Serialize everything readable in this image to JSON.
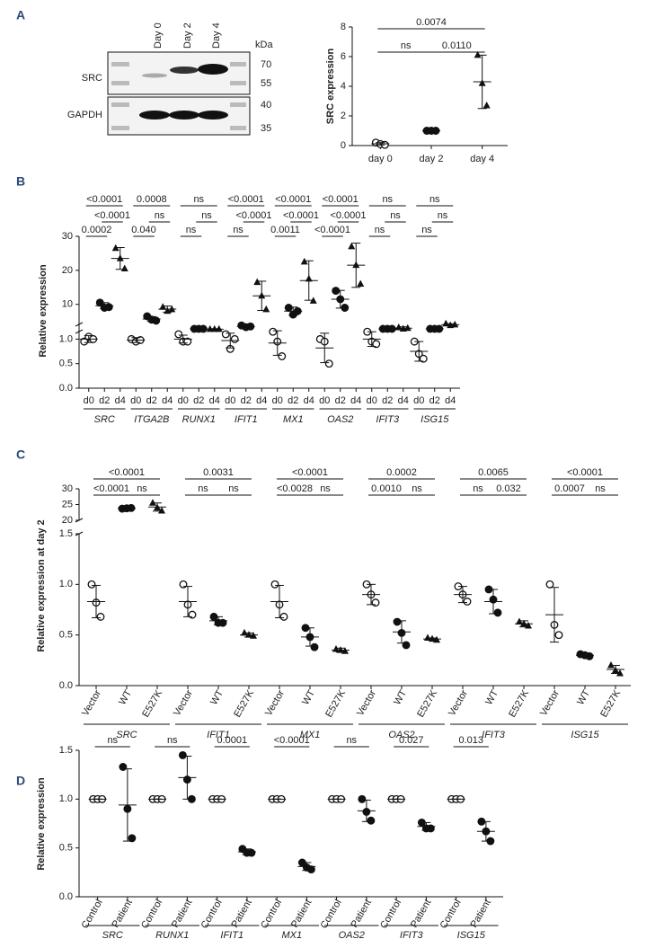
{
  "blot": {
    "lanes": [
      "Day 0",
      "Day 2",
      "Day 4"
    ],
    "unit": "kDa",
    "sizes": [
      70,
      55,
      40,
      35
    ],
    "proteins": [
      "SRC",
      "GAPDH"
    ]
  },
  "chart_data": [
    {
      "type": "dotplot",
      "panel": "A",
      "ylabel": "SRC expression",
      "categories": [
        "day 0",
        "day 2",
        "day 4"
      ],
      "markers": [
        "open-circle",
        "circle",
        "triangle"
      ],
      "points": [
        [
          0.2,
          0.1,
          0.05
        ],
        [
          1,
          1,
          1
        ],
        [
          6.1,
          4.2,
          2.7
        ]
      ],
      "means": [
        0.12,
        1,
        4.3
      ],
      "sds": [
        0.08,
        0,
        1.8
      ],
      "comparisons": [
        [
          {
            "pair": [
              0,
              2
            ],
            "label": "0.0074"
          }
        ],
        [
          {
            "pair": [
              0,
              1
            ],
            "label": "ns"
          },
          {
            "pair": [
              1,
              2
            ],
            "label": "0.0110"
          }
        ]
      ],
      "ylim": [
        0,
        8
      ],
      "yticks": [
        0,
        2,
        4,
        6,
        8
      ]
    },
    {
      "type": "dotplot",
      "panel": "B",
      "ylabel": "Relative expression",
      "groups": [
        "SRC",
        "ITGA2B",
        "RUNX1",
        "IFIT1",
        "MX1",
        "OAS2",
        "IFIT3",
        "ISG15"
      ],
      "categories": [
        "d0",
        "d2",
        "d4"
      ],
      "markers": [
        "open-circle",
        "circle",
        "triangle"
      ],
      "points": [
        [
          [
            0.95,
            1.05,
            1.0
          ],
          [
            10.5,
            9.0,
            9.2
          ],
          [
            26.5,
            23.5,
            20.5
          ]
        ],
        [
          [
            1.0,
            0.95,
            0.98
          ],
          [
            6.5,
            5.5,
            5.2
          ],
          [
            9.2,
            8.0,
            8.5
          ]
        ],
        [
          [
            1.1,
            0.95,
            0.95
          ],
          [
            2.8,
            2.8,
            2.8
          ],
          [
            2.7,
            2.7,
            2.7
          ]
        ],
        [
          [
            1.1,
            0.8,
            1.0
          ],
          [
            3.8,
            3.3,
            3.5
          ],
          [
            16.5,
            12.5,
            8.5
          ]
        ],
        [
          [
            1.15,
            0.95,
            0.65
          ],
          [
            9.0,
            7.0,
            8.0
          ],
          [
            22.5,
            17.5,
            11
          ]
        ],
        [
          [
            1.0,
            0.95,
            0.5
          ],
          [
            14.0,
            11.5,
            9.0
          ],
          [
            27.0,
            21.5,
            16.0
          ]
        ],
        [
          [
            1.15,
            0.95,
            0.9
          ],
          [
            2.8,
            2.8,
            2.8
          ],
          [
            3.2,
            2.8,
            3.0
          ]
        ],
        [
          [
            0.95,
            0.7,
            0.6
          ],
          [
            2.8,
            2.8,
            2.8
          ],
          [
            4.3,
            3.8,
            4.0
          ]
        ]
      ],
      "means": [
        [
          1.0,
          9.6,
          23.5
        ],
        [
          0.98,
          5.7,
          8.6
        ],
        [
          1.0,
          2.8,
          2.7
        ],
        [
          0.97,
          3.5,
          12.5
        ],
        [
          0.92,
          8.0,
          17.0
        ],
        [
          0.82,
          11.5,
          21.5
        ],
        [
          1.0,
          2.8,
          3.0
        ],
        [
          0.75,
          2.8,
          4.0
        ]
      ],
      "sds": [
        [
          0.07,
          0.9,
          3.2
        ],
        [
          0.05,
          0.7,
          0.9
        ],
        [
          0.08,
          0.1,
          0.15
        ],
        [
          0.15,
          0.3,
          4.3
        ],
        [
          0.25,
          1.2,
          5.8
        ],
        [
          0.3,
          2.6,
          6.5
        ],
        [
          0.15,
          0.1,
          0.4
        ],
        [
          0.2,
          0.1,
          0.3
        ]
      ],
      "comparisons": [
        [
          [
            {
              "pair": [
                0,
                2
              ],
              "label": "<0.0001"
            }
          ],
          [
            {
              "pair": [
                1,
                2
              ],
              "label": "<0.0001"
            }
          ],
          [
            {
              "pair": [
                0,
                1
              ],
              "label": "0.0002"
            }
          ]
        ],
        [
          [
            {
              "pair": [
                0,
                2
              ],
              "label": "0.0008"
            }
          ],
          [
            {
              "pair": [
                1,
                2
              ],
              "label": "ns"
            }
          ],
          [
            {
              "pair": [
                0,
                1
              ],
              "label": "0.040"
            }
          ]
        ],
        [
          [
            {
              "pair": [
                0,
                2
              ],
              "label": "ns"
            }
          ],
          [
            {
              "pair": [
                1,
                2
              ],
              "label": "ns"
            }
          ],
          [
            {
              "pair": [
                0,
                1
              ],
              "label": "ns"
            }
          ]
        ],
        [
          [
            {
              "pair": [
                0,
                2
              ],
              "label": "<0.0001"
            }
          ],
          [
            {
              "pair": [
                1,
                2
              ],
              "label": "<0.0001"
            }
          ],
          [
            {
              "pair": [
                0,
                1
              ],
              "label": "ns"
            }
          ]
        ],
        [
          [
            {
              "pair": [
                0,
                2
              ],
              "label": "<0.0001"
            }
          ],
          [
            {
              "pair": [
                1,
                2
              ],
              "label": "<0.0001"
            }
          ],
          [
            {
              "pair": [
                0,
                1
              ],
              "label": "0.0011"
            }
          ]
        ],
        [
          [
            {
              "pair": [
                0,
                2
              ],
              "label": "<0.0001"
            }
          ],
          [
            {
              "pair": [
                1,
                2
              ],
              "label": "<0.0001"
            }
          ],
          [
            {
              "pair": [
                0,
                1
              ],
              "label": "<0.0001"
            }
          ]
        ],
        [
          [
            {
              "pair": [
                0,
                2
              ],
              "label": "ns"
            }
          ],
          [
            {
              "pair": [
                1,
                2
              ],
              "label": "ns"
            }
          ],
          [
            {
              "pair": [
                0,
                1
              ],
              "label": "ns"
            }
          ]
        ],
        [
          [
            {
              "pair": [
                0,
                2
              ],
              "label": "ns"
            }
          ],
          [
            {
              "pair": [
                1,
                2
              ],
              "label": "ns"
            }
          ],
          [
            {
              "pair": [
                0,
                1
              ],
              "label": "ns"
            }
          ]
        ]
      ],
      "ylim": [
        0,
        1.3
      ],
      "yticks": [
        {
          "value": 0,
          "label": "0.0"
        },
        0.5,
        {
          "value": 1,
          "label": "1.0"
        }
      ],
      "ylim_upper": [
        2,
        30
      ],
      "yticks_upper": [
        10,
        20,
        30
      ]
    },
    {
      "type": "dotplot",
      "panel": "C",
      "ylabel": "Relative expression at day 2",
      "groups": [
        "SRC",
        "IFIT1",
        "MX1",
        "OAS2",
        "IFIT3",
        "ISG15"
      ],
      "categories": [
        "Vector",
        "WT",
        "E527K"
      ],
      "markers": [
        "open-circle",
        "circle",
        "triangle"
      ],
      "points": [
        [
          [
            1.0,
            0.82,
            0.68
          ],
          [
            23.7,
            23.8,
            23.9
          ],
          [
            25.5,
            24.0,
            23.0
          ]
        ],
        [
          [
            1.0,
            0.8,
            0.7
          ],
          [
            0.68,
            0.62,
            0.62
          ],
          [
            0.52,
            0.5,
            0.49
          ]
        ],
        [
          [
            1.0,
            0.8,
            0.68
          ],
          [
            0.57,
            0.48,
            0.38
          ],
          [
            0.36,
            0.35,
            0.34
          ]
        ],
        [
          [
            1.0,
            0.9,
            0.82
          ],
          [
            0.63,
            0.52,
            0.4
          ],
          [
            0.47,
            0.46,
            0.45
          ]
        ],
        [
          [
            0.98,
            0.9,
            0.83
          ],
          [
            0.95,
            0.85,
            0.72
          ],
          [
            0.63,
            0.61,
            0.59
          ]
        ],
        [
          [
            1.0,
            0.6,
            0.5
          ],
          [
            0.31,
            0.3,
            0.29
          ],
          [
            0.2,
            0.15,
            0.12
          ]
        ]
      ],
      "means": [
        [
          0.83,
          23.8,
          24.2
        ],
        [
          0.83,
          0.64,
          0.5
        ],
        [
          0.83,
          0.48,
          0.35
        ],
        [
          0.9,
          0.53,
          0.46
        ],
        [
          0.9,
          0.83,
          0.61
        ],
        [
          0.7,
          0.3,
          0.16
        ]
      ],
      "sds": [
        [
          0.16,
          0.1,
          1.3
        ],
        [
          0.15,
          0.04,
          0.02
        ],
        [
          0.16,
          0.09,
          0.02
        ],
        [
          0.1,
          0.11,
          0.01
        ],
        [
          0.08,
          0.12,
          0.03
        ],
        [
          0.27,
          0.01,
          0.04
        ]
      ],
      "comparisons": [
        [
          [
            {
              "pair": [
                0,
                2
              ],
              "label": "<0.0001"
            }
          ],
          [
            {
              "pair": [
                0,
                1
              ],
              "label": "<0.0001"
            },
            {
              "pair": [
                1,
                2
              ],
              "label": "ns"
            }
          ]
        ],
        [
          [
            {
              "pair": [
                0,
                2
              ],
              "label": "0.0031"
            }
          ],
          [
            {
              "pair": [
                0,
                1
              ],
              "label": "ns"
            },
            {
              "pair": [
                1,
                2
              ],
              "label": "ns"
            }
          ]
        ],
        [
          [
            {
              "pair": [
                0,
                2
              ],
              "label": "<0.0001"
            }
          ],
          [
            {
              "pair": [
                0,
                1
              ],
              "label": "<0.0028"
            },
            {
              "pair": [
                1,
                2
              ],
              "label": "ns"
            }
          ]
        ],
        [
          [
            {
              "pair": [
                0,
                2
              ],
              "label": "0.0002"
            }
          ],
          [
            {
              "pair": [
                0,
                1
              ],
              "label": "0.0010"
            },
            {
              "pair": [
                1,
                2
              ],
              "label": "ns"
            }
          ]
        ],
        [
          [
            {
              "pair": [
                0,
                2
              ],
              "label": "0.0065"
            }
          ],
          [
            {
              "pair": [
                0,
                1
              ],
              "label": "ns"
            },
            {
              "pair": [
                1,
                2
              ],
              "label": "0.032"
            }
          ]
        ],
        [
          [
            {
              "pair": [
                0,
                2
              ],
              "label": "<0.0001"
            }
          ],
          [
            {
              "pair": [
                0,
                1
              ],
              "label": "0.0007"
            },
            {
              "pair": [
                1,
                2
              ],
              "label": "ns"
            }
          ]
        ]
      ],
      "ylim": [
        0,
        1.5
      ],
      "yticks": [
        {
          "value": 0,
          "label": "0.0"
        },
        0.5,
        {
          "value": 1,
          "label": "1.0"
        },
        1.5
      ],
      "ylim_upper": [
        20,
        30
      ],
      "yticks_upper": [
        20,
        25,
        30
      ]
    },
    {
      "type": "dotplot",
      "panel": "D",
      "ylabel": "Relative expression",
      "groups": [
        "SRC",
        "RUNX1",
        "IFIT1",
        "MX1",
        "OAS2",
        "IFIT3",
        "ISG15"
      ],
      "categories": [
        "Control",
        "Patient"
      ],
      "markers": [
        "open-circle",
        "circle"
      ],
      "points": [
        [
          [
            1,
            1,
            1
          ],
          [
            1.33,
            0.9,
            0.6
          ]
        ],
        [
          [
            1,
            1,
            1
          ],
          [
            1.45,
            1.2,
            1.0
          ]
        ],
        [
          [
            1,
            1,
            1
          ],
          [
            0.49,
            0.45,
            0.45
          ]
        ],
        [
          [
            1,
            1,
            1
          ],
          [
            0.35,
            0.3,
            0.28
          ]
        ],
        [
          [
            1,
            1,
            1
          ],
          [
            1.0,
            0.87,
            0.78
          ]
        ],
        [
          [
            1,
            1,
            1
          ],
          [
            0.76,
            0.7,
            0.7
          ]
        ],
        [
          [
            1,
            1,
            1
          ],
          [
            0.77,
            0.67,
            0.57
          ]
        ]
      ],
      "means": [
        [
          1,
          0.94
        ],
        [
          1,
          1.22
        ],
        [
          1,
          0.46
        ],
        [
          1,
          0.31
        ],
        [
          1,
          0.88
        ],
        [
          1,
          0.72
        ],
        [
          1,
          0.67
        ]
      ],
      "sds": [
        [
          0,
          0.37
        ],
        [
          0,
          0.22
        ],
        [
          0,
          0.03
        ],
        [
          0,
          0.04
        ],
        [
          0,
          0.11
        ],
        [
          0,
          0.04
        ],
        [
          0,
          0.1
        ]
      ],
      "comparisons": [
        [
          [
            {
              "pair": [
                0,
                1
              ],
              "label": "ns"
            }
          ]
        ],
        [
          [
            {
              "pair": [
                0,
                1
              ],
              "label": "ns"
            }
          ]
        ],
        [
          [
            {
              "pair": [
                0,
                1
              ],
              "label": "0.0001"
            }
          ]
        ],
        [
          [
            {
              "pair": [
                0,
                1
              ],
              "label": "<0.0001"
            }
          ]
        ],
        [
          [
            {
              "pair": [
                0,
                1
              ],
              "label": "ns"
            }
          ]
        ],
        [
          [
            {
              "pair": [
                0,
                1
              ],
              "label": "0.027"
            }
          ]
        ],
        [
          [
            {
              "pair": [
                0,
                1
              ],
              "label": "0.013"
            }
          ]
        ]
      ],
      "ylim": [
        0,
        1.5
      ],
      "yticks": [
        {
          "value": 0,
          "label": "0.0"
        },
        0.5,
        {
          "value": 1,
          "label": "1.0"
        },
        1.5
      ]
    }
  ]
}
